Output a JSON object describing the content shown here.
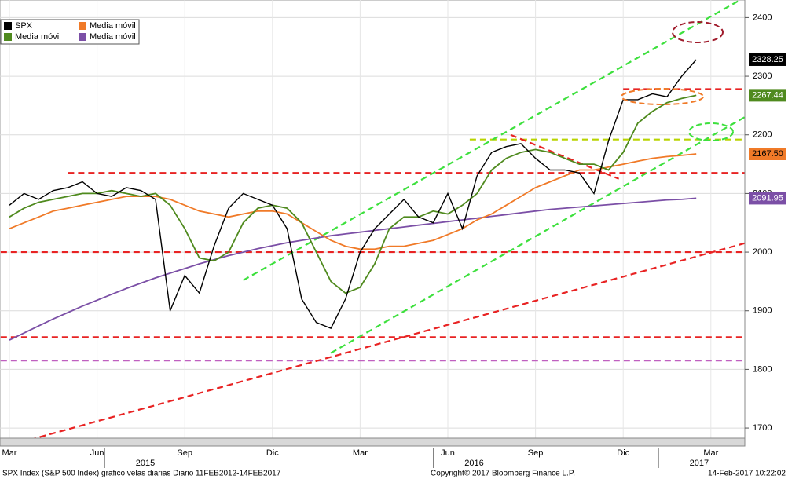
{
  "chart_data": {
    "type": "line",
    "categories": [
      "Mar",
      null,
      null,
      null,
      null,
      null,
      "Jun",
      null,
      null,
      null,
      null,
      null,
      "Sep",
      null,
      null,
      null,
      null,
      null,
      "Dic",
      null,
      null,
      null,
      null,
      null,
      "Mar",
      null,
      null,
      null,
      null,
      null,
      "Jun",
      null,
      null,
      null,
      null,
      null,
      "Sep",
      null,
      null,
      null,
      null,
      null,
      "Dic",
      null,
      null,
      null,
      null,
      null,
      "Mar"
    ],
    "year_labels": [
      "2015",
      "2016",
      "2017"
    ],
    "series": [
      {
        "name": "SPX",
        "color": "#000000",
        "tag_color": "#000000",
        "tag_text": "#ffffff",
        "values": [
          2080,
          2100,
          2090,
          2105,
          2110,
          2120,
          2100,
          2095,
          2110,
          2105,
          2090,
          1900,
          1960,
          1930,
          2010,
          2075,
          2100,
          2090,
          2080,
          2040,
          1920,
          1880,
          1870,
          1920,
          2000,
          2040,
          2065,
          2090,
          2060,
          2050,
          2100,
          2040,
          2130,
          2170,
          2180,
          2185,
          2160,
          2140,
          2140,
          2135,
          2100,
          2190,
          2260,
          2260,
          2270,
          2265,
          2300,
          2328.25,
          null
        ]
      },
      {
        "name": "Media móvil",
        "color": "#4f8a1e",
        "tag_color": "#4f8a1e",
        "tag_text": "#ffffff",
        "values": [
          2060,
          2075,
          2085,
          2090,
          2095,
          2100,
          2100,
          2105,
          2100,
          2095,
          2100,
          2080,
          2040,
          1990,
          1985,
          2000,
          2050,
          2075,
          2080,
          2075,
          2050,
          2000,
          1950,
          1930,
          1940,
          1980,
          2040,
          2060,
          2060,
          2070,
          2065,
          2080,
          2100,
          2140,
          2160,
          2170,
          2175,
          2170,
          2160,
          2150,
          2150,
          2140,
          2170,
          2220,
          2240,
          2255,
          2262,
          2267.44,
          null
        ]
      },
      {
        "name": "Media móvil",
        "color": "#f07a28",
        "tag_color": "#f07a28",
        "tag_text": "#000000",
        "values": [
          2040,
          2050,
          2060,
          2070,
          2075,
          2080,
          2085,
          2090,
          2095,
          2095,
          2095,
          2090,
          2080,
          2070,
          2065,
          2060,
          2065,
          2070,
          2070,
          2065,
          2050,
          2035,
          2020,
          2010,
          2005,
          2005,
          2010,
          2010,
          2015,
          2020,
          2030,
          2040,
          2055,
          2065,
          2080,
          2095,
          2110,
          2120,
          2130,
          2140,
          2140,
          2145,
          2150,
          2155,
          2160,
          2163,
          2165,
          2167.5,
          null
        ],
        "value_labels": [
          null,
          null,
          null,
          null,
          null,
          null,
          null,
          null,
          null,
          null,
          null,
          null,
          null,
          null,
          null,
          null,
          null,
          null,
          null,
          null,
          null,
          null,
          null,
          null,
          null,
          null,
          null,
          null,
          null,
          null,
          null,
          null,
          null,
          null,
          null,
          null,
          null,
          null,
          null,
          null,
          null,
          null,
          null,
          null,
          null,
          null,
          null,
          "2167.50",
          null
        ]
      },
      {
        "name": "Media móvil",
        "color": "#7b4fa6",
        "tag_color": "#7b4fa6",
        "tag_text": "#ffffff",
        "values": [
          1850,
          1862,
          1874,
          1886,
          1897,
          1908,
          1918,
          1928,
          1938,
          1947,
          1956,
          1964,
          1972,
          1980,
          1987,
          1994,
          2000,
          2006,
          2011,
          2016,
          2020,
          2024,
          2028,
          2031,
          2034,
          2037,
          2040,
          2043,
          2046,
          2049,
          2052,
          2055,
          2058,
          2061,
          2064,
          2067,
          2070,
          2073,
          2075,
          2077,
          2079,
          2081,
          2083,
          2085,
          2087,
          2089,
          2090,
          2091.95,
          null
        ]
      }
    ],
    "reference_lines": [
      {
        "color": "#e82323",
        "points": [
          [
            -0.6,
            2000
          ],
          [
            50.3,
            2000
          ]
        ]
      },
      {
        "color": "#e82323",
        "points": [
          [
            4,
            2135
          ],
          [
            50.3,
            2135
          ]
        ]
      },
      {
        "color": "#e82323",
        "points": [
          [
            -0.6,
            1855
          ],
          [
            50.3,
            1855
          ]
        ]
      },
      {
        "color": "#c060c0",
        "points": [
          [
            -0.6,
            1815
          ],
          [
            50.3,
            1815
          ]
        ]
      },
      {
        "color": "#b8d400",
        "points": [
          [
            31.5,
            2192
          ],
          [
            50.3,
            2192
          ]
        ]
      },
      {
        "color": "#e82323",
        "points": [
          [
            42,
            2278
          ],
          [
            50.3,
            2278
          ]
        ]
      },
      {
        "color": "#e82323",
        "points": [
          [
            34.3,
            2200
          ],
          [
            41.7,
            2125
          ]
        ]
      },
      {
        "color": "#e82323",
        "points": [
          [
            1.4,
            1680
          ],
          [
            50.3,
            2015
          ]
        ]
      },
      {
        "color": "#3de03d",
        "points": [
          [
            16,
            1952
          ],
          [
            50,
            2430
          ]
        ]
      },
      {
        "color": "#3de03d",
        "points": [
          [
            22,
            1828
          ],
          [
            50.3,
            2230
          ]
        ]
      }
    ],
    "ylim": [
      1680,
      2430
    ],
    "yticks": [
      1700,
      1800,
      1900,
      2000,
      2100,
      2200,
      2300,
      2400
    ],
    "grid": true,
    "legend": "top-left",
    "footer_left": "SPX Index (S&P 500 Index) grafico velas diarias  Diario 11FEB2012-14FEB2017",
    "footer_center": "Copyright© 2017 Bloomberg Finance L.P.",
    "footer_right": "14-Feb-2017 10:22:02"
  }
}
